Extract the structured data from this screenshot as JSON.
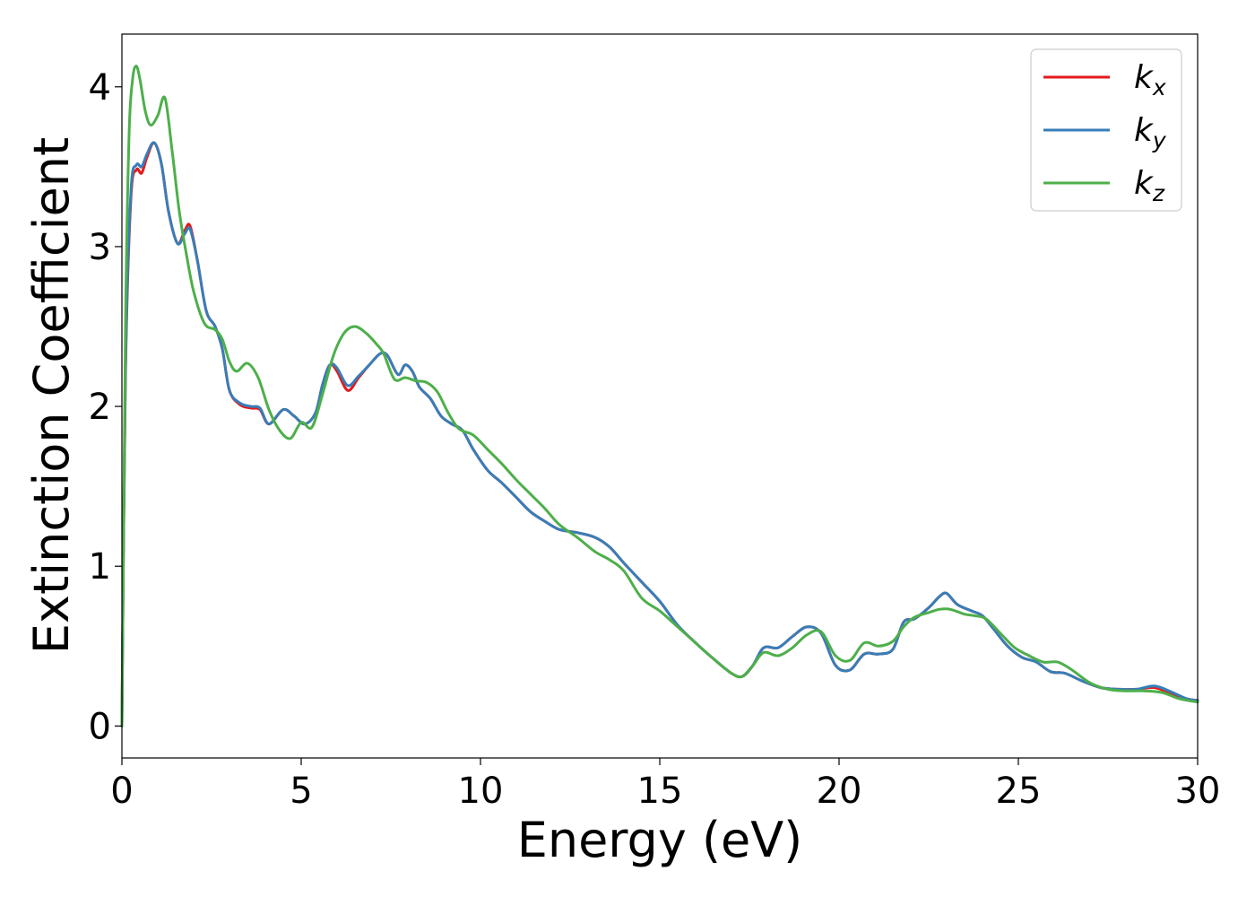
{
  "chart_data": {
    "type": "line",
    "title": "",
    "xlabel": "Energy (eV)",
    "ylabel": "Extinction Coefficient",
    "xlim": [
      0,
      30
    ],
    "ylim": [
      -0.2,
      4.33
    ],
    "xticks": [
      0,
      5,
      10,
      15,
      20,
      25,
      30
    ],
    "yticks": [
      0,
      1,
      2,
      3,
      4
    ],
    "grid": false,
    "legend_position": "top-right",
    "series": [
      {
        "name": "k_x",
        "label_base": "k",
        "label_sub": "x",
        "color": "#e41a1c",
        "x": [
          0,
          0.1,
          0.25,
          0.4,
          0.55,
          0.7,
          0.9,
          1.1,
          1.3,
          1.55,
          1.75,
          1.9,
          2.1,
          2.35,
          2.6,
          2.8,
          3.0,
          3.3,
          3.6,
          3.85,
          4.1,
          4.5,
          4.8,
          5.1,
          5.4,
          5.6,
          5.8,
          6.0,
          6.3,
          6.6,
          6.9,
          7.2,
          7.4,
          7.7,
          7.9,
          8.1,
          8.3,
          8.6,
          8.9,
          9.2,
          9.5,
          9.8,
          10.2,
          10.6,
          11.0,
          11.4,
          11.8,
          12.2,
          12.7,
          13.2,
          13.6,
          14.0,
          14.5,
          15.0,
          15.5,
          16.0,
          16.5,
          17.0,
          17.3,
          17.6,
          17.9,
          18.3,
          18.7,
          19.1,
          19.5,
          19.9,
          20.3,
          20.7,
          21.1,
          21.5,
          21.8,
          22.1,
          22.5,
          22.8,
          23.0,
          23.3,
          23.7,
          24.0,
          24.3,
          24.7,
          25.1,
          25.5,
          25.9,
          26.3,
          26.8,
          27.3,
          27.8,
          28.3,
          28.8,
          29.3,
          29.7,
          30.0
        ],
        "values": [
          0,
          2.2,
          3.3,
          3.48,
          3.46,
          3.56,
          3.65,
          3.52,
          3.22,
          3.02,
          3.1,
          3.13,
          2.92,
          2.6,
          2.5,
          2.36,
          2.1,
          2.01,
          1.99,
          1.98,
          1.89,
          1.98,
          1.94,
          1.89,
          1.96,
          2.14,
          2.26,
          2.22,
          2.1,
          2.18,
          2.26,
          2.33,
          2.32,
          2.2,
          2.26,
          2.22,
          2.12,
          2.05,
          1.94,
          1.89,
          1.85,
          1.73,
          1.6,
          1.52,
          1.43,
          1.34,
          1.28,
          1.23,
          1.21,
          1.18,
          1.12,
          1.02,
          0.9,
          0.78,
          0.63,
          0.52,
          0.42,
          0.33,
          0.31,
          0.38,
          0.49,
          0.49,
          0.56,
          0.62,
          0.58,
          0.38,
          0.35,
          0.45,
          0.45,
          0.48,
          0.65,
          0.67,
          0.74,
          0.81,
          0.83,
          0.76,
          0.72,
          0.69,
          0.61,
          0.5,
          0.43,
          0.4,
          0.34,
          0.33,
          0.28,
          0.24,
          0.23,
          0.23,
          0.24,
          0.2,
          0.17,
          0.16
        ]
      },
      {
        "name": "k_y",
        "label_base": "k",
        "label_sub": "y",
        "color": "#377eb8",
        "x": [
          0,
          0.1,
          0.25,
          0.4,
          0.55,
          0.7,
          0.9,
          1.1,
          1.3,
          1.55,
          1.75,
          1.9,
          2.1,
          2.35,
          2.6,
          2.8,
          3.0,
          3.3,
          3.6,
          3.85,
          4.1,
          4.5,
          4.8,
          5.1,
          5.4,
          5.6,
          5.8,
          6.0,
          6.3,
          6.6,
          6.9,
          7.2,
          7.4,
          7.7,
          7.9,
          8.1,
          8.3,
          8.6,
          8.9,
          9.2,
          9.5,
          9.8,
          10.2,
          10.6,
          11.0,
          11.4,
          11.8,
          12.2,
          12.7,
          13.2,
          13.6,
          14.0,
          14.5,
          15.0,
          15.5,
          16.0,
          16.5,
          17.0,
          17.3,
          17.6,
          17.9,
          18.3,
          18.7,
          19.1,
          19.5,
          19.9,
          20.3,
          20.7,
          21.1,
          21.5,
          21.8,
          22.1,
          22.5,
          22.8,
          23.0,
          23.3,
          23.7,
          24.0,
          24.3,
          24.7,
          25.1,
          25.5,
          25.9,
          26.3,
          26.8,
          27.3,
          27.8,
          28.3,
          28.8,
          29.3,
          29.7,
          30.0
        ],
        "values": [
          0,
          2.25,
          3.34,
          3.51,
          3.5,
          3.58,
          3.65,
          3.52,
          3.22,
          3.02,
          3.08,
          3.11,
          2.92,
          2.6,
          2.5,
          2.36,
          2.1,
          2.02,
          2.0,
          1.99,
          1.89,
          1.98,
          1.94,
          1.89,
          1.96,
          2.14,
          2.26,
          2.24,
          2.13,
          2.19,
          2.26,
          2.33,
          2.32,
          2.2,
          2.26,
          2.22,
          2.12,
          2.05,
          1.94,
          1.89,
          1.85,
          1.73,
          1.6,
          1.52,
          1.43,
          1.34,
          1.28,
          1.23,
          1.21,
          1.18,
          1.12,
          1.02,
          0.9,
          0.78,
          0.63,
          0.52,
          0.42,
          0.33,
          0.31,
          0.38,
          0.49,
          0.49,
          0.56,
          0.62,
          0.58,
          0.38,
          0.35,
          0.45,
          0.45,
          0.48,
          0.65,
          0.67,
          0.74,
          0.81,
          0.83,
          0.76,
          0.72,
          0.69,
          0.61,
          0.5,
          0.43,
          0.4,
          0.34,
          0.33,
          0.28,
          0.24,
          0.23,
          0.23,
          0.25,
          0.21,
          0.17,
          0.16
        ]
      },
      {
        "name": "k_z",
        "label_base": "k",
        "label_sub": "z",
        "color": "#4daf4a",
        "x": [
          0,
          0.1,
          0.2,
          0.3,
          0.4,
          0.5,
          0.65,
          0.8,
          1.0,
          1.2,
          1.4,
          1.6,
          1.8,
          2.0,
          2.3,
          2.6,
          2.8,
          3.0,
          3.2,
          3.5,
          3.8,
          4.1,
          4.4,
          4.7,
          5.0,
          5.3,
          5.6,
          5.9,
          6.2,
          6.5,
          6.8,
          7.1,
          7.3,
          7.6,
          7.9,
          8.2,
          8.5,
          8.8,
          9.1,
          9.4,
          9.8,
          10.2,
          10.6,
          11.0,
          11.4,
          11.8,
          12.2,
          12.7,
          13.2,
          13.6,
          14.0,
          14.5,
          15.0,
          15.5,
          16.0,
          16.5,
          17.0,
          17.3,
          17.6,
          17.9,
          18.3,
          18.7,
          19.1,
          19.5,
          19.9,
          20.3,
          20.7,
          21.1,
          21.5,
          21.8,
          22.1,
          22.5,
          22.8,
          23.1,
          23.5,
          23.8,
          24.1,
          24.5,
          24.9,
          25.3,
          25.7,
          26.1,
          26.5,
          27.0,
          27.5,
          28.0,
          28.5,
          29.0,
          29.5,
          30.0
        ],
        "values": [
          0,
          2.5,
          3.7,
          4.05,
          4.13,
          4.05,
          3.85,
          3.76,
          3.82,
          3.93,
          3.6,
          3.22,
          2.95,
          2.72,
          2.52,
          2.48,
          2.42,
          2.28,
          2.22,
          2.27,
          2.18,
          1.98,
          1.85,
          1.8,
          1.9,
          1.87,
          2.08,
          2.32,
          2.46,
          2.5,
          2.46,
          2.39,
          2.33,
          2.17,
          2.18,
          2.16,
          2.15,
          2.09,
          1.96,
          1.86,
          1.82,
          1.73,
          1.64,
          1.54,
          1.45,
          1.36,
          1.26,
          1.18,
          1.09,
          1.04,
          0.97,
          0.8,
          0.72,
          0.62,
          0.52,
          0.42,
          0.33,
          0.31,
          0.38,
          0.46,
          0.44,
          0.49,
          0.57,
          0.59,
          0.44,
          0.41,
          0.52,
          0.5,
          0.53,
          0.62,
          0.68,
          0.71,
          0.73,
          0.73,
          0.7,
          0.69,
          0.67,
          0.58,
          0.49,
          0.44,
          0.4,
          0.4,
          0.35,
          0.27,
          0.23,
          0.22,
          0.22,
          0.21,
          0.17,
          0.15
        ]
      }
    ]
  }
}
